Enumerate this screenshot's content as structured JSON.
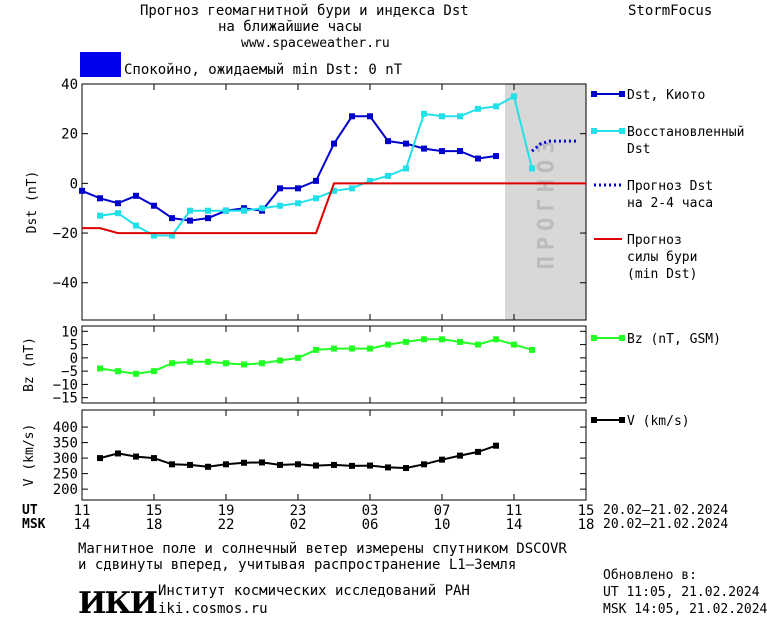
{
  "header": {
    "title_line1": "Прогноз геомагнитной бури и индекса Dst",
    "title_line2": "на ближайшие часы",
    "url": "www.spaceweather.ru",
    "brand": "StormFocus",
    "status_text": "Спокойно, ожидаемый min Dst: 0 nT",
    "status_color": "#0000ee"
  },
  "colors": {
    "dst_kyoto": "#0000cc",
    "dst_restored": "#22e0e8",
    "forecast_dst": "#0000cc",
    "storm_forecast": "#dd0000",
    "bz": "#22ff22",
    "v": "#000000",
    "forecast_band": "#d8d8d8",
    "forecast_label": "#bbbbbb"
  },
  "forecast_band_label": "ПРОГНОЗ",
  "chart_data": [
    {
      "type": "line",
      "ylabel": "Dst (nT)",
      "ylim": [
        -55,
        40
      ],
      "yticks": [
        "40",
        "20",
        "0",
        "−20",
        "−40"
      ],
      "ytick_values": [
        40,
        20,
        0,
        -20,
        -40
      ],
      "x_unit": "hours since 20.02 11 UT",
      "xlim": [
        0,
        28
      ],
      "forecast_region": [
        23.5,
        28
      ],
      "series": [
        {
          "name": "Dst, Киото",
          "key": "dst_kyoto",
          "marker": "square",
          "x": [
            0,
            1,
            2,
            3,
            4,
            5,
            6,
            7,
            8,
            9,
            10,
            11,
            12,
            13,
            14,
            15,
            16,
            17,
            18,
            19,
            20,
            21,
            22,
            23
          ],
          "y": [
            -3,
            -6,
            -8,
            -5,
            -9,
            -14,
            -15,
            -14,
            -11,
            -10,
            -11,
            -2,
            -2,
            1,
            16,
            27,
            27,
            17,
            16,
            14,
            13,
            13,
            10,
            11
          ]
        },
        {
          "name": "Восстановленный Dst",
          "key": "dst_restored",
          "marker": "square",
          "x": [
            1,
            2,
            3,
            4,
            5,
            6,
            7,
            8,
            9,
            10,
            11,
            12,
            13,
            14,
            15,
            16,
            17,
            18,
            19,
            20,
            21,
            22,
            23,
            24,
            25
          ],
          "y": [
            -13,
            -12,
            -17,
            -21,
            -21,
            -11,
            -11,
            -11,
            -11,
            -10,
            -9,
            -8,
            -6,
            -3,
            -2,
            1,
            3,
            6,
            28,
            27,
            27,
            30,
            31,
            35,
            6
          ]
        },
        {
          "name": "Прогноз Dst на 2-4 часа",
          "key": "forecast_dst",
          "style": "dotted",
          "x": [
            25,
            25.5,
            26,
            26.5,
            27,
            27.5
          ],
          "y": [
            13,
            16,
            17,
            17,
            17,
            17
          ]
        },
        {
          "name": "Прогноз силы бури (min Dst)",
          "key": "storm_forecast",
          "style": "solid",
          "x": [
            0,
            1,
            2,
            13,
            14,
            28
          ],
          "y": [
            -18,
            -18,
            -20,
            -20,
            0,
            0
          ]
        }
      ],
      "legend": [
        {
          "key": "dst_kyoto",
          "lines": [
            "Dst, Киото"
          ],
          "style": "marker"
        },
        {
          "key": "dst_restored",
          "lines": [
            "Восстановленный",
            "Dst"
          ],
          "style": "marker"
        },
        {
          "key": "forecast_dst",
          "lines": [
            "Прогноз Dst",
            "на 2-4 часа"
          ],
          "style": "dotted"
        },
        {
          "key": "storm_forecast",
          "lines": [
            "Прогноз",
            "силы бури",
            "(min Dst)"
          ],
          "style": "solid"
        }
      ]
    },
    {
      "type": "line",
      "ylabel": "Bz (nT)",
      "ylim": [
        -17,
        12
      ],
      "yticks": [
        "10",
        "5",
        "0",
        "−5",
        "−10",
        "−15"
      ],
      "ytick_values": [
        10,
        5,
        0,
        -5,
        -10,
        -15
      ],
      "xlim": [
        0,
        28
      ],
      "series": [
        {
          "name": "Bz (nT, GSM)",
          "key": "bz",
          "marker": "square",
          "x": [
            1,
            2,
            3,
            4,
            5,
            6,
            7,
            8,
            9,
            10,
            11,
            12,
            13,
            14,
            15,
            16,
            17,
            18,
            19,
            20,
            21,
            22,
            23,
            24,
            25,
            26
          ],
          "y": [
            -4,
            -5,
            -6,
            -5,
            -2,
            -1.5,
            -1.5,
            -2,
            -2.5,
            -2,
            -1,
            0,
            3,
            3.5,
            3.5,
            3.5,
            5,
            6,
            7,
            7,
            6,
            5,
            7,
            5,
            3,
            null
          ]
        }
      ],
      "legend": [
        {
          "key": "bz",
          "lines": [
            "Bz (nT, GSM)"
          ],
          "style": "marker"
        }
      ]
    },
    {
      "type": "line",
      "ylabel": "V (km/s)",
      "ylim": [
        165,
        455
      ],
      "yticks": [
        "400",
        "350",
        "300",
        "250",
        "200"
      ],
      "ytick_values": [
        400,
        350,
        300,
        250,
        200
      ],
      "xlim": [
        0,
        28
      ],
      "series": [
        {
          "name": "V (km/s)",
          "key": "v",
          "marker": "square",
          "x": [
            1,
            2,
            3,
            4,
            5,
            6,
            7,
            8,
            9,
            10,
            11,
            12,
            13,
            14,
            15,
            16,
            17,
            18,
            19,
            20,
            21,
            22,
            23,
            24,
            25
          ],
          "y": [
            300,
            315,
            305,
            300,
            280,
            278,
            272,
            280,
            285,
            286,
            278,
            280,
            276,
            278,
            275,
            276,
            270,
            268,
            280,
            295,
            308,
            320,
            340,
            null,
            null
          ]
        }
      ],
      "legend": [
        {
          "key": "v",
          "lines": [
            "V (km/s)"
          ],
          "style": "marker"
        }
      ]
    }
  ],
  "x_axis": {
    "ut_label": "UT",
    "msk_label": "MSK",
    "ut_ticks": [
      "11",
      "15",
      "19",
      "23",
      "03",
      "07",
      "11",
      "15"
    ],
    "msk_ticks": [
      "14",
      "18",
      "22",
      "02",
      "06",
      "10",
      "14",
      "18"
    ],
    "tick_positions": [
      0,
      4,
      8,
      12,
      16,
      20,
      24,
      28
    ],
    "date_range_ut": "20.02–21.02.2024",
    "date_range_msk": "20.02–21.02.2024"
  },
  "footer": {
    "note_line1": "Магнитное поле и солнечный ветер измерены спутником DSCOVR",
    "note_line2": "и сдвинуты вперед, учитывая распространение L1–Земля",
    "institute": "Институт космических исследований РАН",
    "institute_url": "iki.cosmos.ru",
    "logo_text": "ИКИ",
    "updated_label": "Обновлено в:",
    "updated_ut": "UT  11:05, 21.02.2024",
    "updated_msk": "MSK 14:05, 21.02.2024"
  }
}
